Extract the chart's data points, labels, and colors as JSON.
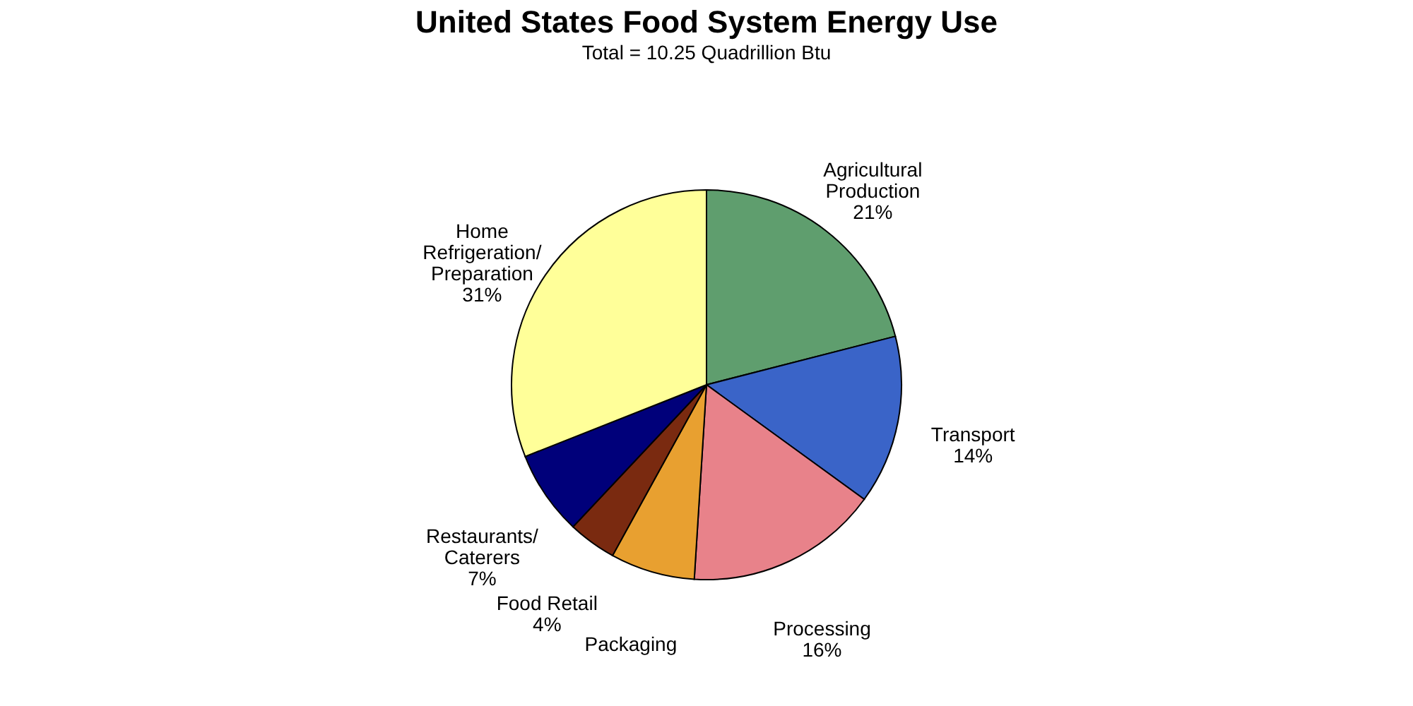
{
  "chart_data": {
    "type": "pie",
    "title": "United States Food System Energy Use",
    "subtitle": "Total = 10.25 Quadrillion Btu",
    "categories": [
      "Agricultural\nProduction",
      "Transport",
      "Processing",
      "Packaging",
      "Food Retail",
      "Restaurants/\nCaterers",
      "Home\nRefrigeration/\nPreparation"
    ],
    "values": [
      21,
      14,
      16,
      7,
      4,
      7,
      31
    ],
    "value_labels": [
      "21%",
      "14%",
      "16%",
      null,
      "4%",
      "7%",
      "31%"
    ],
    "colors": [
      "#5f9e6e",
      "#3a64c8",
      "#e8828a",
      "#e8a030",
      "#7a2a10",
      "#00007a",
      "#ffff99"
    ],
    "legend": false
  }
}
